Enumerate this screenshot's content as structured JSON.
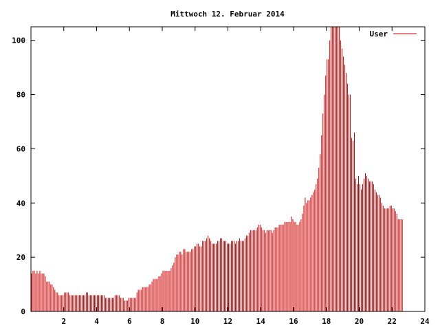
{
  "chart_data": {
    "type": "bar",
    "title": "Mittwoch 12. Februar 2014",
    "xlabel": "",
    "ylabel": "",
    "xlim": [
      0,
      24
    ],
    "ylim": [
      0,
      105
    ],
    "x_ticks": [
      2,
      4,
      6,
      8,
      10,
      12,
      14,
      16,
      18,
      20,
      22,
      24
    ],
    "y_ticks": [
      0,
      20,
      40,
      60,
      80,
      100
    ],
    "grid": false,
    "legend_position": "top-right",
    "series": [
      {
        "name": "User",
        "color": "#cc0000",
        "points_per_hour": 12,
        "values": [
          14,
          15,
          15,
          14,
          15,
          14,
          15,
          14,
          14,
          14,
          13,
          11,
          11,
          11,
          10,
          10,
          9,
          8,
          7,
          7,
          6,
          6,
          6,
          6,
          7,
          7,
          7,
          7,
          6,
          6,
          6,
          6,
          6,
          6,
          6,
          6,
          6,
          6,
          6,
          6,
          7,
          7,
          6,
          6,
          6,
          6,
          6,
          6,
          6,
          6,
          6,
          6,
          6,
          6,
          5,
          5,
          5,
          5,
          5,
          5,
          5,
          6,
          6,
          6,
          6,
          5,
          5,
          5,
          4,
          4,
          4,
          5,
          5,
          5,
          5,
          5,
          5,
          7,
          8,
          8,
          8,
          9,
          9,
          9,
          9,
          9,
          10,
          10,
          11,
          12,
          12,
          12,
          12,
          13,
          13,
          14,
          15,
          15,
          15,
          15,
          15,
          15,
          16,
          17,
          18,
          20,
          21,
          21,
          22,
          22,
          21,
          23,
          23,
          22,
          22,
          22,
          22,
          23,
          23,
          24,
          24,
          25,
          25,
          24,
          24,
          26,
          26,
          26,
          27,
          28,
          27,
          26,
          25,
          25,
          25,
          25,
          26,
          26,
          27,
          27,
          26,
          26,
          26,
          25,
          25,
          25,
          26,
          26,
          26,
          25,
          26,
          26,
          27,
          26,
          26,
          26,
          27,
          28,
          28,
          29,
          30,
          30,
          30,
          30,
          30,
          31,
          32,
          32,
          31,
          30,
          30,
          29,
          30,
          30,
          30,
          30,
          29,
          30,
          31,
          31,
          31,
          32,
          32,
          32,
          32,
          33,
          33,
          33,
          33,
          33,
          35,
          34,
          33,
          33,
          32,
          32,
          33,
          34,
          36,
          39,
          42,
          40,
          41,
          41,
          42,
          43,
          44,
          45,
          47,
          49,
          53,
          58,
          65,
          73,
          80,
          87,
          93,
          93,
          100,
          106,
          106,
          106,
          106,
          106,
          106,
          106,
          100,
          97,
          94,
          91,
          88,
          84,
          80,
          80,
          64,
          63,
          66,
          49,
          47,
          50,
          47,
          45,
          47,
          49,
          51,
          50,
          49,
          48,
          48,
          48,
          47,
          45,
          44,
          43,
          43,
          42,
          40,
          39,
          38,
          38,
          38,
          38,
          39,
          39,
          38,
          38,
          37,
          36,
          34,
          34,
          34,
          34
        ]
      }
    ]
  }
}
